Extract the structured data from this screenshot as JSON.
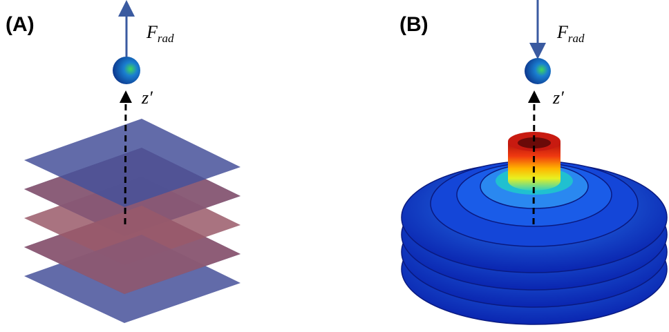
{
  "panels": [
    {
      "label": "(A)",
      "force_symbol": "F",
      "force_subscript": "rad",
      "axis_label": "z′"
    },
    {
      "label": "(B)",
      "force_symbol": "F",
      "force_subscript": "rad",
      "axis_label": "z′"
    }
  ]
}
